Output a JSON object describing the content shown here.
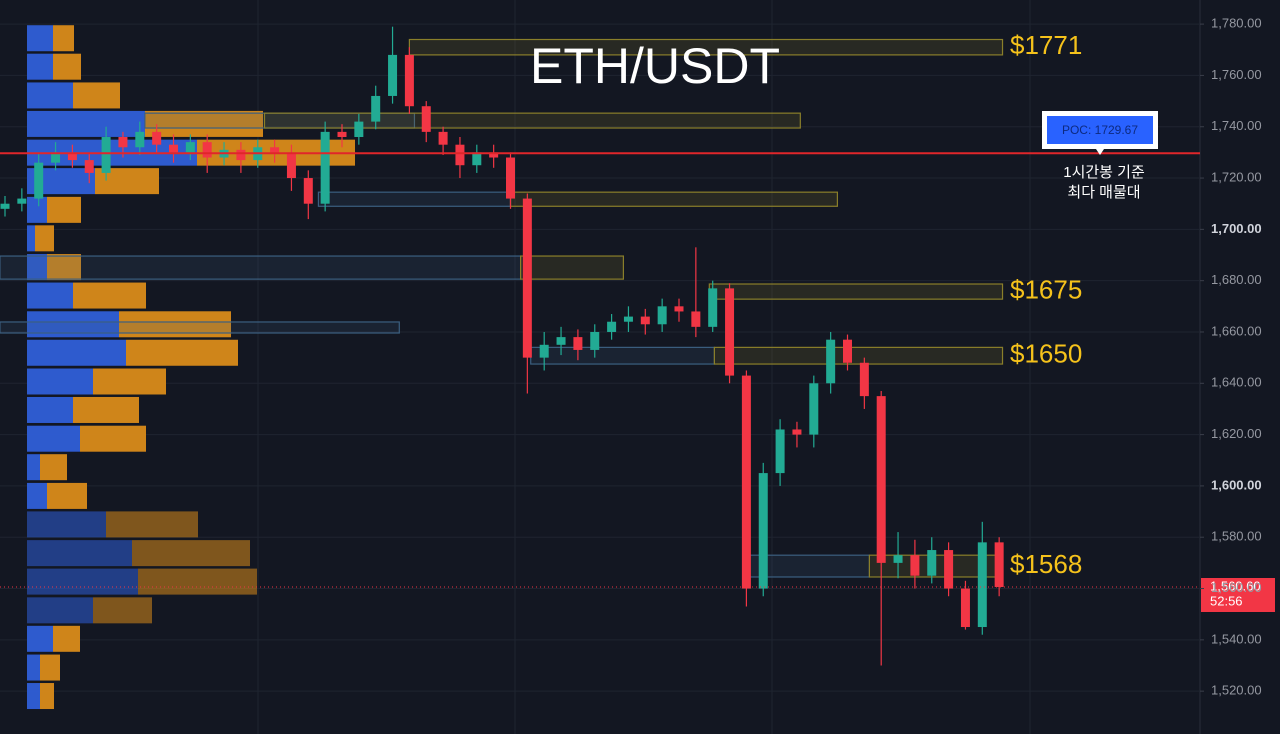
{
  "chart_data": {
    "type": "candlestick",
    "title": "ETH/USDT",
    "up_color": "#22ab94",
    "down_color": "#f23645",
    "ylim": [
      1503.3,
      1789.4
    ],
    "yticks": [
      {
        "value": 1520,
        "label": "1,520.00"
      },
      {
        "value": 1540,
        "label": "1,540.00"
      },
      {
        "value": 1560,
        "label": "1,560.00"
      },
      {
        "value": 1580,
        "label": "1,580.00"
      },
      {
        "value": 1600,
        "label": "1,600.00"
      },
      {
        "value": 1620,
        "label": "1,620.00"
      },
      {
        "value": 1640,
        "label": "1,640.00"
      },
      {
        "value": 1660,
        "label": "1,660.00"
      },
      {
        "value": 1680,
        "label": "1,680.00"
      },
      {
        "value": 1700,
        "label": "1,700.00"
      },
      {
        "value": 1720,
        "label": "1,720.00"
      },
      {
        "value": 1740,
        "label": "1,740.00"
      },
      {
        "value": 1760,
        "label": "1,760.00"
      },
      {
        "value": 1780,
        "label": "1,780.00"
      }
    ],
    "grid": true,
    "open": [
      1708,
      1710,
      1712,
      1726,
      1730,
      1727,
      1722,
      1736,
      1732,
      1738,
      1733,
      1730,
      1734,
      1728,
      1731,
      1727,
      1732,
      1730,
      1720,
      1710,
      1738,
      1736,
      1742,
      1752,
      1768,
      1748,
      1738,
      1733,
      1725,
      1730,
      1728,
      1712,
      1650,
      1655,
      1658,
      1653,
      1660,
      1664,
      1666,
      1663,
      1670,
      1668,
      1662,
      1677,
      1643,
      1560,
      1605,
      1622,
      1620,
      1640,
      1657,
      1648,
      1635,
      1570,
      1573,
      1565,
      1575,
      1560,
      1545,
      1578
    ],
    "high": [
      1713,
      1716,
      1730,
      1734,
      1733,
      1730,
      1740,
      1738,
      1742,
      1741,
      1737,
      1737,
      1737,
      1734,
      1734,
      1735,
      1735,
      1733,
      1723,
      1742,
      1741,
      1745,
      1756,
      1779,
      1771,
      1750,
      1740,
      1736,
      1733,
      1733,
      1730,
      1714,
      1660,
      1662,
      1661,
      1663,
      1667,
      1670,
      1669,
      1673,
      1673,
      1693,
      1680,
      1679,
      1645,
      1609,
      1626,
      1625,
      1643,
      1660,
      1659,
      1650,
      1637,
      1582,
      1579,
      1580,
      1578,
      1563,
      1586,
      1580
    ],
    "low": [
      1705,
      1707,
      1709,
      1723,
      1724,
      1718,
      1719,
      1728,
      1729,
      1730,
      1726,
      1727,
      1722,
      1725,
      1722,
      1724,
      1726,
      1715,
      1704,
      1707,
      1732,
      1733,
      1739,
      1749,
      1745,
      1734,
      1729,
      1720,
      1722,
      1724,
      1708,
      1636,
      1645,
      1651,
      1649,
      1650,
      1657,
      1660,
      1659,
      1660,
      1664,
      1658,
      1660,
      1640,
      1553,
      1557,
      1600,
      1615,
      1615,
      1636,
      1645,
      1630,
      1530,
      1564,
      1560,
      1562,
      1557,
      1544,
      1542,
      1557
    ],
    "close": [
      1710,
      1712,
      1726,
      1730,
      1727,
      1722,
      1736,
      1732,
      1738,
      1733,
      1730,
      1734,
      1728,
      1731,
      1727,
      1732,
      1730,
      1720,
      1710,
      1738,
      1736,
      1742,
      1752,
      1768,
      1748,
      1738,
      1733,
      1725,
      1730,
      1728,
      1712,
      1650,
      1655,
      1658,
      1653,
      1660,
      1664,
      1666,
      1663,
      1670,
      1668,
      1662,
      1677,
      1643,
      1560,
      1605,
      1622,
      1620,
      1640,
      1657,
      1648,
      1635,
      1570,
      1573,
      1565,
      1575,
      1560,
      1545,
      1578,
      1560.6
    ],
    "volume_profile": {
      "levels": [
        1774.5,
        1763.4,
        1752.2,
        1741.1,
        1729.9,
        1718.8,
        1707.6,
        1696.5,
        1685.3,
        1674.2,
        1663,
        1651.9,
        1640.7,
        1629.6,
        1618.4,
        1607.3,
        1596.1,
        1585,
        1573.8,
        1562.7,
        1551.5,
        1540.4,
        1529.2,
        1518.1
      ],
      "buy": [
        26,
        26,
        46,
        118,
        170,
        68,
        20,
        8,
        20,
        46,
        92,
        99,
        66,
        46,
        53,
        13,
        20,
        79,
        105,
        111,
        66,
        26,
        13,
        13
      ],
      "sell": [
        21,
        28,
        47,
        118,
        158,
        64,
        34,
        19,
        34,
        73,
        112,
        112,
        73,
        66,
        66,
        27,
        40,
        92,
        118,
        119,
        59,
        27,
        20,
        14
      ],
      "buy_color": "#2f5fd8",
      "sell_color": "#d98b1a"
    },
    "zones": [
      {
        "start": 24.0,
        "end": 59.2,
        "low": 1768,
        "high": 1774,
        "color": "#8a7f2a",
        "label": "$1771"
      },
      {
        "start": 8.3,
        "end": 24.3,
        "low": 1739.5,
        "high": 1745.3,
        "color": "#3b5f80"
      },
      {
        "start": 15.4,
        "end": 47.2,
        "low": 1739.5,
        "high": 1745.3,
        "color": "#8a7f2a"
      },
      {
        "start": 18.6,
        "end": 30,
        "low": 1709,
        "high": 1714.5,
        "color": "#3b5f80"
      },
      {
        "start": 30,
        "end": 49.4,
        "low": 1709,
        "high": 1714.5,
        "color": "#8a7f2a"
      },
      {
        "start": -0.3,
        "end": 30.6,
        "low": 1680.6,
        "high": 1689.6,
        "color": "#3b5f80"
      },
      {
        "start": 30.6,
        "end": 36.7,
        "low": 1680.6,
        "high": 1689.6,
        "color": "#8a7f2a"
      },
      {
        "start": 41.8,
        "end": 59.2,
        "low": 1672.8,
        "high": 1678.7,
        "color": "#8a7f2a",
        "label": "$1675"
      },
      {
        "start": -0.3,
        "end": 23.4,
        "low": 1659.6,
        "high": 1663.9,
        "color": "#3b5f80"
      },
      {
        "start": 31.2,
        "end": 42.1,
        "low": 1647.5,
        "high": 1654,
        "color": "#3b5f80"
      },
      {
        "start": 42.1,
        "end": 59.2,
        "low": 1647.5,
        "high": 1654,
        "color": "#8a7f2a",
        "label": "$1650"
      },
      {
        "start": 44.2,
        "end": 51.3,
        "low": 1564.5,
        "high": 1573,
        "color": "#3b5f80"
      },
      {
        "start": 51.3,
        "end": 59.2,
        "low": 1564.5,
        "high": 1573,
        "color": "#8a7f2a",
        "label": "$1568"
      }
    ],
    "poc": {
      "value": 1729.67,
      "label": "POC: 1729.67",
      "note": [
        "1시간봉 기준",
        "최다 매물대"
      ],
      "color": "#e0262a"
    },
    "last": {
      "value": 1560.6,
      "label": "1,560.60",
      "timer": "52:56",
      "color": "#f23645"
    }
  }
}
